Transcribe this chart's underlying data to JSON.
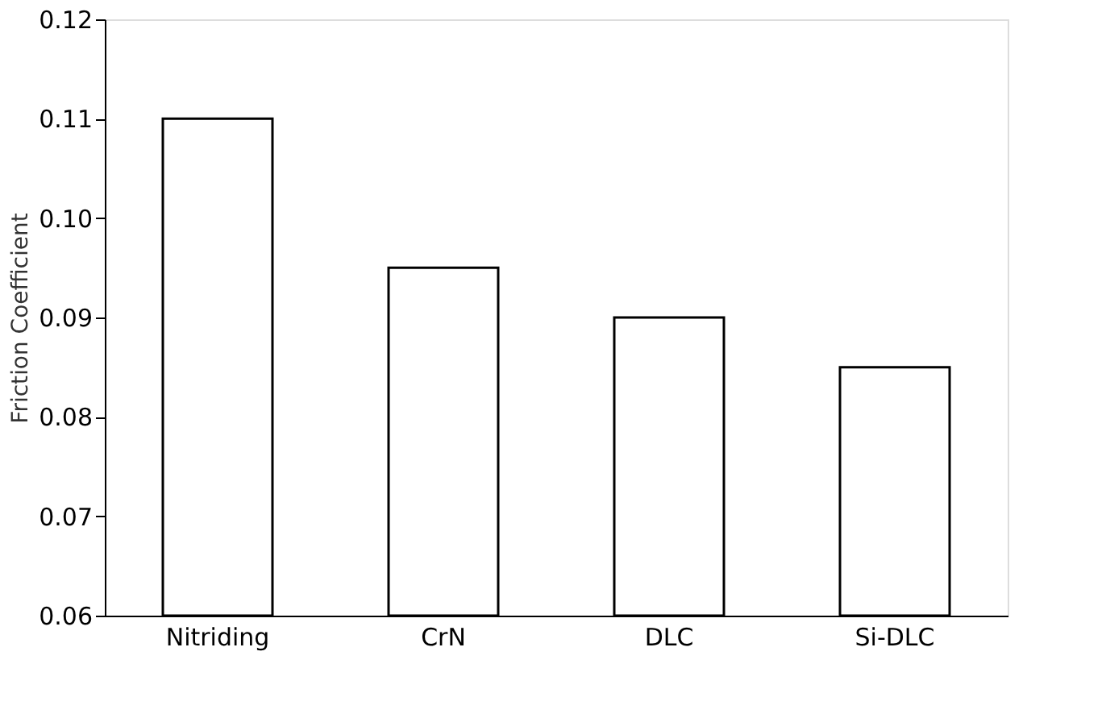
{
  "chart_data": {
    "type": "bar",
    "ylabel": "Friction Coefficient",
    "categories": [
      "Nitriding",
      "CrN",
      "DLC",
      "Si-DLC"
    ],
    "values": [
      0.11,
      0.095,
      0.09,
      0.085
    ],
    "color": "#ffffff",
    "ylim": [
      0.06,
      0.12
    ],
    "yticks": [
      0.06,
      0.07,
      0.08,
      0.09,
      {
        "value": 0.1,
        "label": "0.10"
      },
      0.11,
      0.12
    ],
    "grid": false
  }
}
